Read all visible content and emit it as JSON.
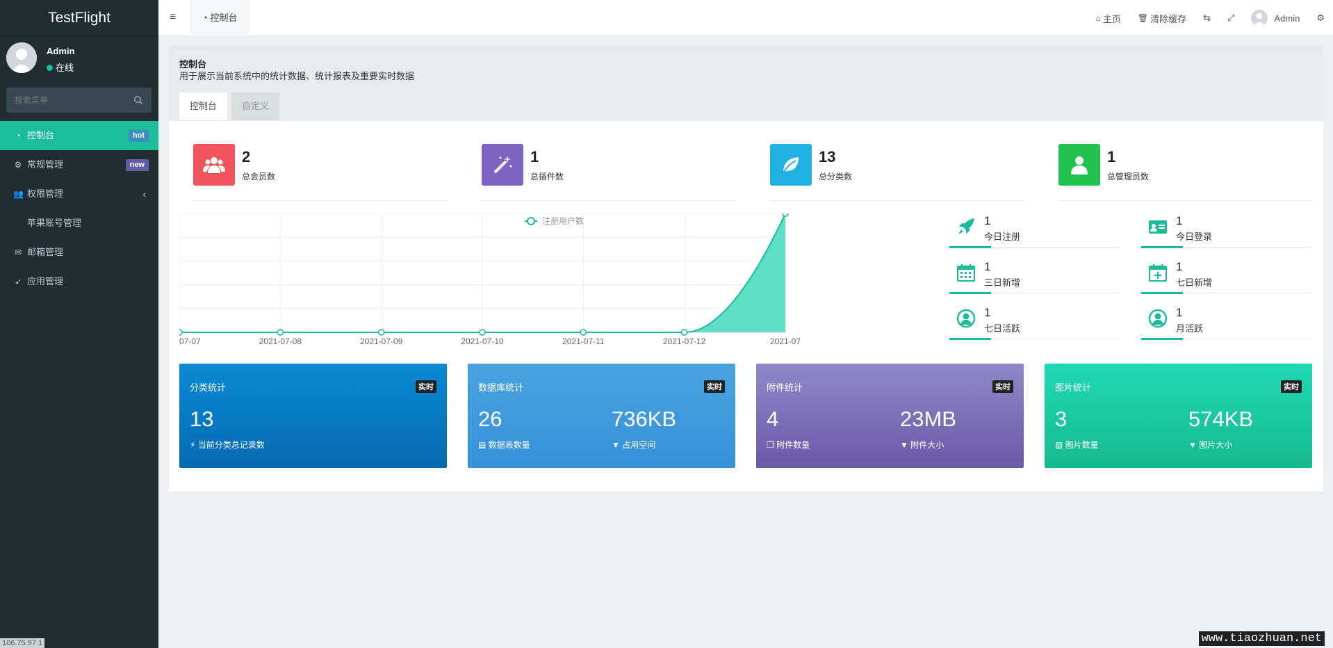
{
  "app": {
    "title": "TestFlight"
  },
  "user": {
    "name": "Admin",
    "status": "在线"
  },
  "search": {
    "placeholder": "搜索菜单"
  },
  "menu": [
    {
      "label": "控制台",
      "badge": "hot"
    },
    {
      "label": "常规管理",
      "badge": "new"
    },
    {
      "label": "权限管理",
      "chevron": "‹"
    },
    {
      "label": "苹果账号管理"
    },
    {
      "label": "邮箱管理"
    },
    {
      "label": "应用管理"
    }
  ],
  "header": {
    "tab": "控制台",
    "home": "主页",
    "clear_cache": "清除缓存",
    "user": "Admin"
  },
  "page": {
    "title": "控制台",
    "description": "用于展示当前系统中的统计数据、统计报表及重要实时数据",
    "tabs": [
      "控制台",
      "自定义"
    ]
  },
  "stats": [
    {
      "value": "2",
      "label": "总会员数",
      "color": "#f0535a",
      "icon": "users-icon"
    },
    {
      "value": "1",
      "label": "总插件数",
      "color": "#7e63c2",
      "icon": "magic-icon"
    },
    {
      "value": "13",
      "label": "总分类数",
      "color": "#1fb2e0",
      "icon": "leaf-icon"
    },
    {
      "value": "1",
      "label": "总管理员数",
      "color": "#20c24e",
      "icon": "user-icon"
    }
  ],
  "minis": [
    {
      "value": "1",
      "label": "今日注册",
      "icon": "rocket-icon"
    },
    {
      "value": "1",
      "label": "今日登录",
      "icon": "id-card-icon"
    },
    {
      "value": "1",
      "label": "三日新增",
      "icon": "calendar-icon"
    },
    {
      "value": "1",
      "label": "七日新增",
      "icon": "calendar-plus-icon"
    },
    {
      "value": "1",
      "label": "七日活跃",
      "icon": "user-circle-icon"
    },
    {
      "value": "1",
      "label": "月活跃",
      "icon": "user-circle-icon"
    }
  ],
  "bigcards": [
    {
      "title": "分类统计",
      "tag": "实时",
      "v1": "13",
      "l1": "当前分类总记录数",
      "v2": "",
      "l2": ""
    },
    {
      "title": "数据库统计",
      "tag": "实时",
      "v1": "26",
      "l1": "数据表数量",
      "v2": "736KB",
      "l2": "占用空间"
    },
    {
      "title": "附件统计",
      "tag": "实时",
      "v1": "4",
      "l1": "附件数量",
      "v2": "23MB",
      "l2": "附件大小"
    },
    {
      "title": "图片统计",
      "tag": "实时",
      "v1": "3",
      "l1": "图片数量",
      "v2": "574KB",
      "l2": "图片大小"
    }
  ],
  "chart_data": {
    "type": "area",
    "legend": "注册用户数",
    "x": [
      "07-07",
      "2021-07-08",
      "2021-07-09",
      "2021-07-10",
      "2021-07-11",
      "2021-07-12",
      "2021-07"
    ],
    "series": [
      {
        "name": "注册用户数",
        "values": [
          0,
          0,
          0,
          0,
          0,
          0,
          1
        ],
        "color": "#1abc9c"
      }
    ],
    "ylim": [
      0,
      1
    ],
    "grid": true,
    "legend_position": "top-center"
  },
  "watermark": "www.tiaozhuan.net",
  "ip": "106.75.97.1"
}
